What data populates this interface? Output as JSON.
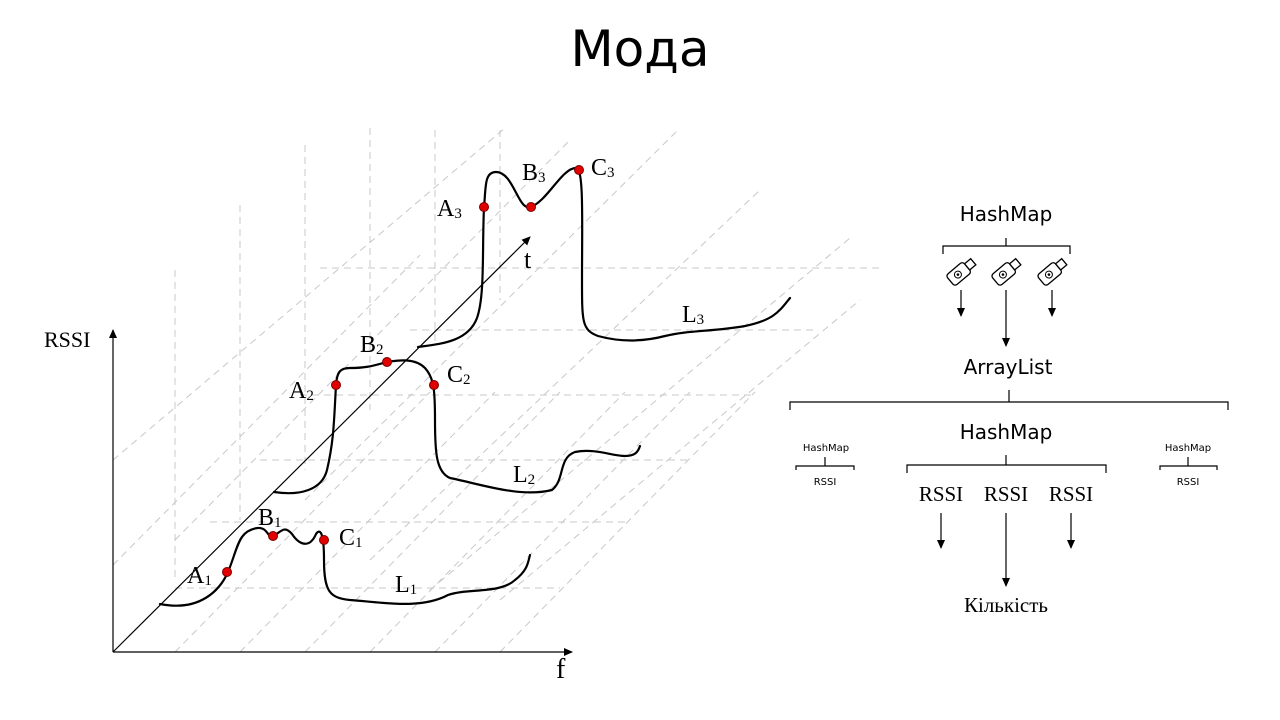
{
  "title": "Мода",
  "graph": {
    "y_axis_label": "RSSI",
    "x_axis_label": "f",
    "t_axis_label": "t",
    "points": [
      {
        "letter": "A",
        "sub": "1"
      },
      {
        "letter": "B",
        "sub": "1"
      },
      {
        "letter": "C",
        "sub": "1"
      },
      {
        "letter": "A",
        "sub": "2"
      },
      {
        "letter": "B",
        "sub": "2"
      },
      {
        "letter": "C",
        "sub": "2"
      },
      {
        "letter": "A",
        "sub": "3"
      },
      {
        "letter": "B",
        "sub": "3"
      },
      {
        "letter": "C",
        "sub": "3"
      }
    ],
    "curves": [
      {
        "letter": "L",
        "sub": "1"
      },
      {
        "letter": "L",
        "sub": "2"
      },
      {
        "letter": "L",
        "sub": "3"
      }
    ],
    "point_color": "#e00000"
  },
  "tree": {
    "top_hashmap": "HashMap",
    "arraylist": "ArrayList",
    "mid_hashmap": "HashMap",
    "left_small_hashmap": "HashMap",
    "left_small_rssi": "RSSI",
    "right_small_hashmap": "HashMap",
    "right_small_rssi": "RSSI",
    "rssi_items": [
      "RSSI",
      "RSSI",
      "RSSI"
    ],
    "result_label": "Кількість",
    "device_icon": "usb-tag-icon"
  }
}
